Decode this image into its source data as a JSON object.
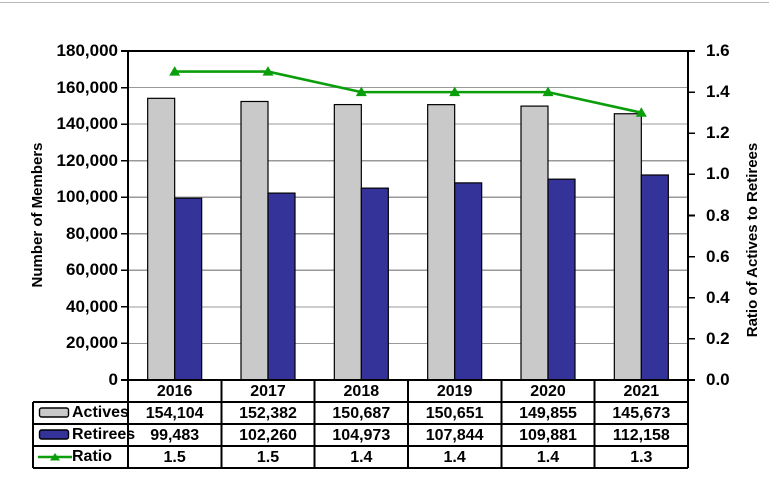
{
  "page": {
    "background": "#ffffff",
    "top_rule_color": "#b7b7b7"
  },
  "chart_data": {
    "type": "bar",
    "subtype": "combo-bar-line-with-data-table",
    "categories": [
      "2016",
      "2017",
      "2018",
      "2019",
      "2020",
      "2021"
    ],
    "series": [
      {
        "name": "Actives",
        "chart": "bar",
        "axis": "left",
        "color": "#c9c9c9",
        "values": [
          154104,
          152382,
          150687,
          150651,
          149855,
          145673
        ],
        "display": [
          "154,104",
          "152,382",
          "150,687",
          "150,651",
          "149,855",
          "145,673"
        ]
      },
      {
        "name": "Retirees",
        "chart": "bar",
        "axis": "left",
        "color": "#333399",
        "values": [
          99483,
          102260,
          104973,
          107844,
          109881,
          112158
        ],
        "display": [
          "99,483",
          "102,260",
          "104,973",
          "107,844",
          "109,881",
          "112,158"
        ]
      },
      {
        "name": "Ratio",
        "chart": "line",
        "axis": "right",
        "marker": "triangle",
        "color": "#0a9e0a",
        "values": [
          1.5,
          1.5,
          1.4,
          1.4,
          1.4,
          1.3
        ],
        "display": [
          "1.5",
          "1.5",
          "1.4",
          "1.4",
          "1.4",
          "1.3"
        ]
      }
    ],
    "left_axis": {
      "title": "Number of Members",
      "min": 0,
      "max": 180000,
      "step": 20000,
      "tick_labels": [
        "180,000",
        "160,000",
        "140,000",
        "120,000",
        "100,000",
        "80,000",
        "60,000",
        "40,000",
        "20,000",
        "0"
      ]
    },
    "right_axis": {
      "title": "Ratio of Actives to Retirees",
      "min": 0,
      "max": 1.6,
      "step": 0.2,
      "tick_labels": [
        "1.6",
        "1.4",
        "1.2",
        "1.0",
        "0.8",
        "0.6",
        "0.4",
        "0.2",
        "0.0"
      ]
    },
    "grid": true,
    "gridline_color": "#999999",
    "axis_color": "#000000",
    "legend_position": "data-table-left"
  }
}
